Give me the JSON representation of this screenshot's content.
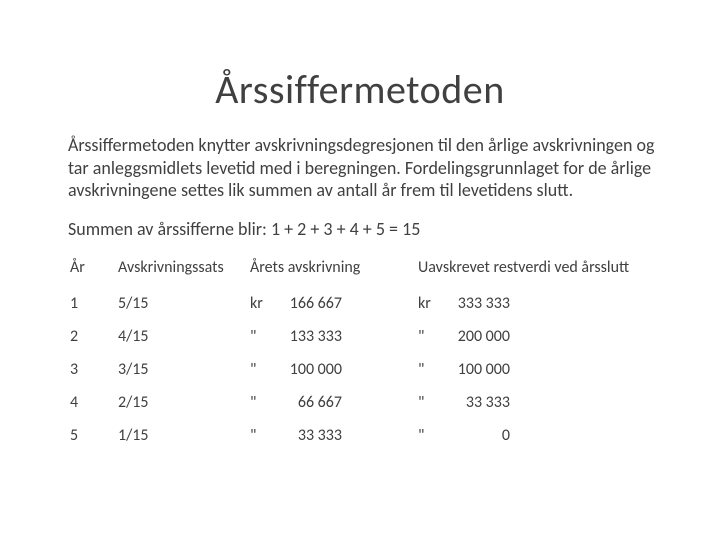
{
  "title": "Årssiffermetoden",
  "paragraph": "Årssiffermetoden knytter avskrivningsdegresjonen til den årlige avskrivningen og tar anleggsmidlets levetid med i beregningen. Fordelingsgrunnlaget for de årlige avskrivningene settes lik summen av antall år frem til levetidens slutt.",
  "subline": "Summen av årssifferne blir: 1 + 2 + 3 + 4 + 5 = 15",
  "table": {
    "columns": [
      "År",
      "Avskrivningssats",
      "Årets avskrivning",
      "Uavskrevet restverdi ved årsslutt"
    ],
    "rows": [
      {
        "year": "1",
        "rate": "5/15",
        "depr_prefix": "kr",
        "depr_value": "166 667",
        "rest_prefix": "kr",
        "rest_value": "333 333"
      },
      {
        "year": "2",
        "rate": "4/15",
        "depr_prefix": "\"",
        "depr_value": "133 333",
        "rest_prefix": "\"",
        "rest_value": "200 000"
      },
      {
        "year": "3",
        "rate": "3/15",
        "depr_prefix": "\"",
        "depr_value": "100 000",
        "rest_prefix": "\"",
        "rest_value": "100 000"
      },
      {
        "year": "4",
        "rate": "2/15",
        "depr_prefix": "\"",
        "depr_value": "66 667",
        "rest_prefix": "\"",
        "rest_value": "33 333"
      },
      {
        "year": "5",
        "rate": "1/15",
        "depr_prefix": "\"",
        "depr_value": "33 333",
        "rest_prefix": "\"",
        "rest_value": "0"
      }
    ],
    "header_fontsize": 16,
    "cell_fontsize": 16,
    "text_color": "#404040"
  },
  "background_color": "#ffffff",
  "title_fontsize": 40,
  "body_fontsize": 18
}
